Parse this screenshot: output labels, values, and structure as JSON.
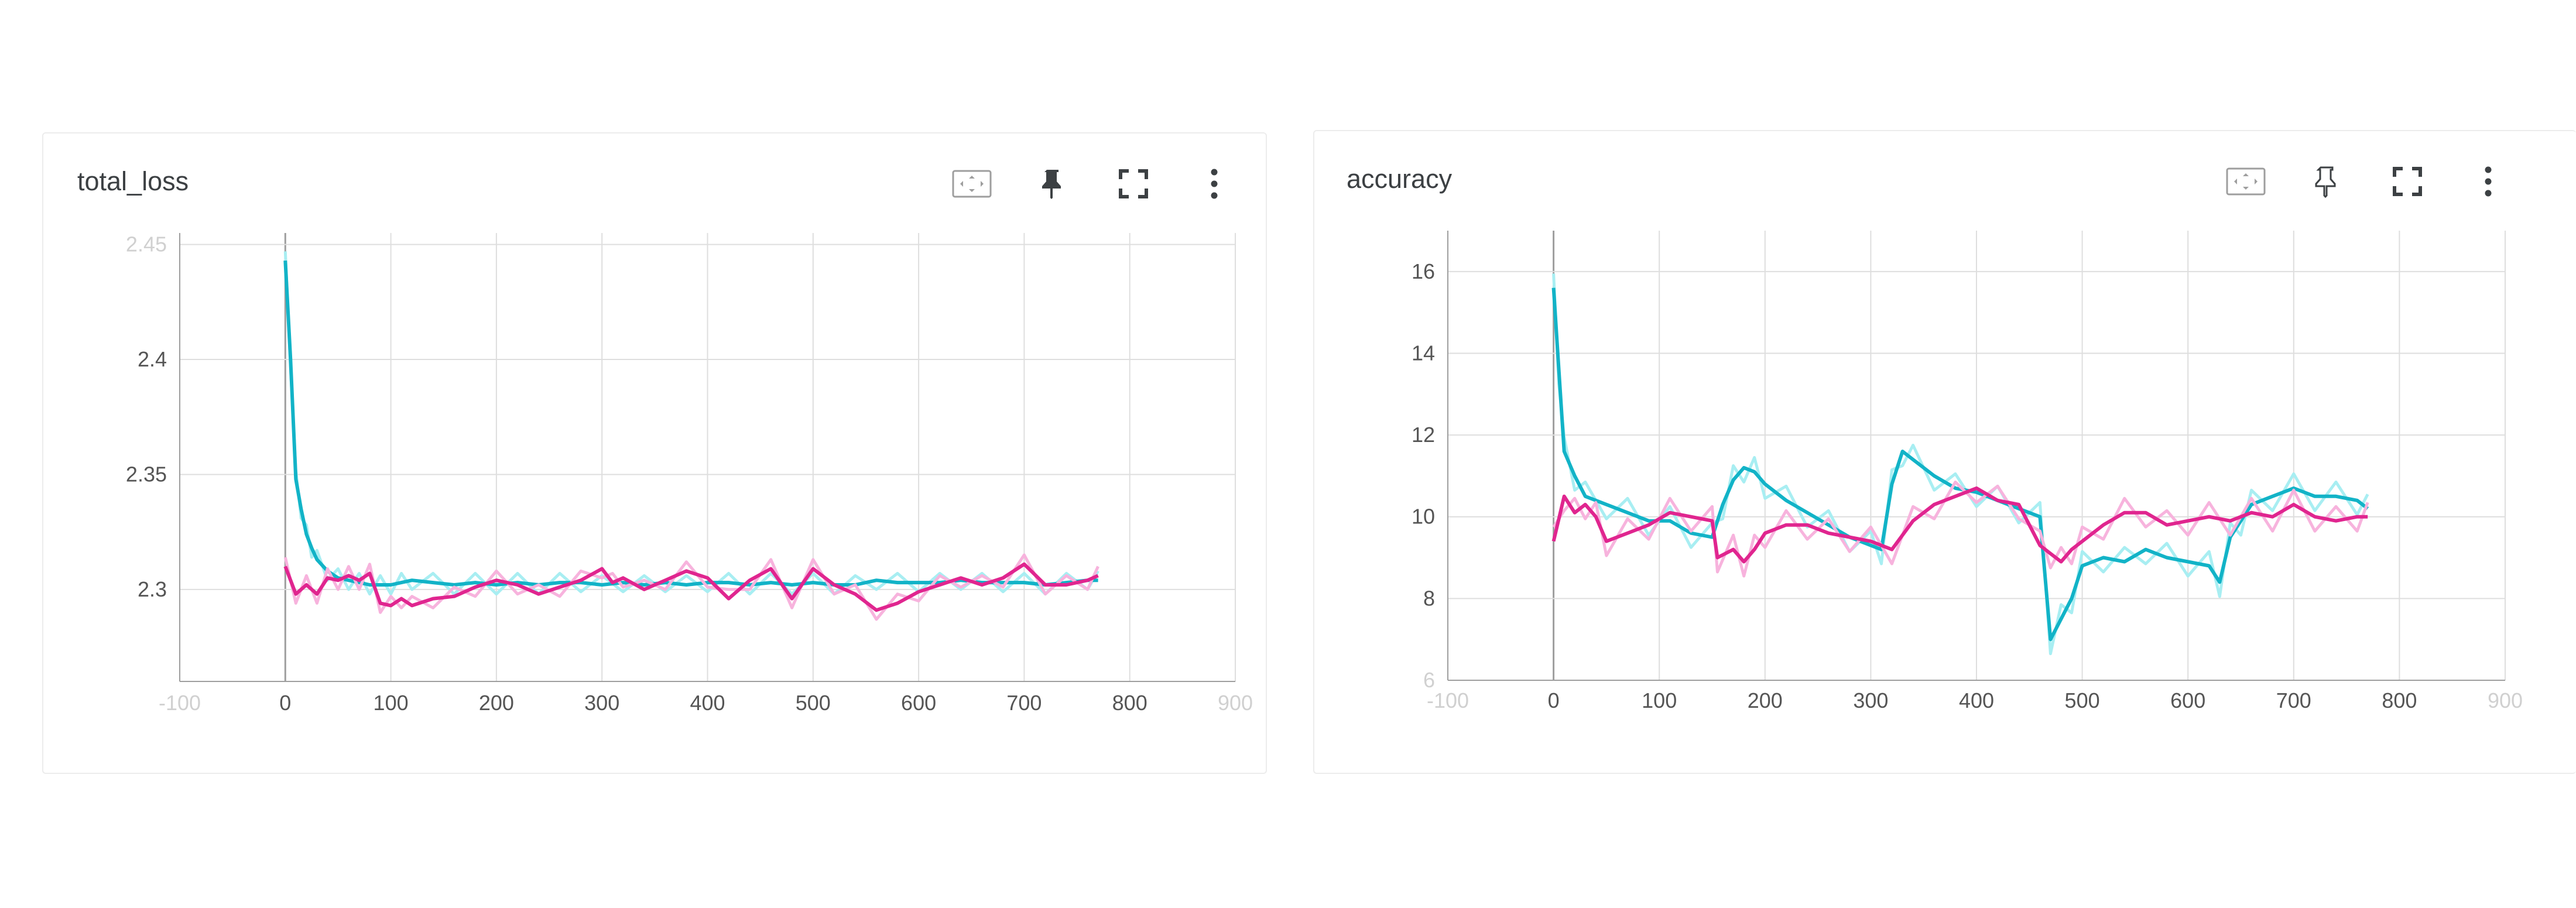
{
  "cards": [
    {
      "title": "total_loss",
      "toolbar": {
        "fit": "fit-domain-icon",
        "pin": "pin-icon",
        "fullscreen": "fullscreen-icon",
        "more": "more-vert-icon"
      }
    },
    {
      "title": "accuracy",
      "toolbar": {
        "fit": "fit-domain-icon",
        "pin": "pin-outline-icon",
        "fullscreen": "fullscreen-icon",
        "more": "more-vert-icon"
      }
    }
  ],
  "colors": {
    "teal": "#12b3c7",
    "teal_raw": "#a8eef2",
    "magenta": "#e0258f",
    "magenta_raw": "#f7b3dd",
    "grid": "#dedede",
    "axis": "#9e9e9e"
  },
  "chart_data": [
    {
      "type": "line",
      "title": "total_loss",
      "xlabel": "",
      "ylabel": "",
      "xlim": [
        -100,
        900
      ],
      "ylim": [
        2.26,
        2.455
      ],
      "x_ticks": [
        -100,
        0,
        100,
        200,
        300,
        400,
        500,
        600,
        700,
        800,
        900
      ],
      "x_tick_labels": [
        "-100",
        "0",
        "100",
        "200",
        "300",
        "400",
        "500",
        "600",
        "700",
        "800",
        "900"
      ],
      "x_faint_ticks": [
        -100,
        900
      ],
      "y_ticks": [
        2.3,
        2.35,
        2.4,
        2.45
      ],
      "y_tick_labels": [
        "2.3",
        "2.35",
        "2.4",
        "2.45"
      ],
      "y_faint_ticks": [
        2.45
      ],
      "grid": true,
      "series": [
        {
          "color": "#12b3c7",
          "raw_color": "#a8eef2",
          "x": [
            0,
            5,
            10,
            15,
            20,
            25,
            30,
            40,
            50,
            60,
            70,
            80,
            90,
            100,
            110,
            120,
            140,
            160,
            180,
            200,
            220,
            240,
            260,
            280,
            300,
            320,
            340,
            360,
            380,
            400,
            420,
            440,
            460,
            480,
            500,
            520,
            540,
            560,
            580,
            600,
            620,
            640,
            660,
            680,
            700,
            720,
            740,
            760,
            770
          ],
          "y": [
            2.443,
            2.4,
            2.348,
            2.335,
            2.324,
            2.318,
            2.313,
            2.308,
            2.305,
            2.304,
            2.303,
            2.302,
            2.302,
            2.302,
            2.303,
            2.304,
            2.303,
            2.302,
            2.303,
            2.302,
            2.303,
            2.302,
            2.303,
            2.303,
            2.302,
            2.303,
            2.302,
            2.303,
            2.302,
            2.303,
            2.303,
            2.302,
            2.303,
            2.302,
            2.303,
            2.302,
            2.302,
            2.304,
            2.303,
            2.303,
            2.303,
            2.304,
            2.303,
            2.303,
            2.303,
            2.302,
            2.303,
            2.304,
            2.304
          ]
        },
        {
          "color": "#e0258f",
          "raw_color": "#f7b3dd",
          "x": [
            0,
            10,
            20,
            30,
            40,
            50,
            60,
            70,
            80,
            90,
            100,
            110,
            120,
            140,
            160,
            180,
            200,
            220,
            240,
            260,
            280,
            300,
            310,
            320,
            340,
            360,
            380,
            400,
            420,
            440,
            460,
            480,
            500,
            520,
            540,
            560,
            580,
            600,
            620,
            640,
            660,
            680,
            700,
            720,
            740,
            760,
            770
          ],
          "y": [
            2.31,
            2.298,
            2.302,
            2.298,
            2.305,
            2.304,
            2.306,
            2.304,
            2.307,
            2.294,
            2.293,
            2.296,
            2.293,
            2.296,
            2.297,
            2.301,
            2.304,
            2.302,
            2.298,
            2.301,
            2.304,
            2.309,
            2.303,
            2.305,
            2.3,
            2.304,
            2.308,
            2.305,
            2.296,
            2.304,
            2.309,
            2.296,
            2.309,
            2.302,
            2.298,
            2.291,
            2.294,
            2.299,
            2.302,
            2.305,
            2.302,
            2.305,
            2.311,
            2.302,
            2.302,
            2.304,
            2.306
          ]
        }
      ]
    },
    {
      "type": "line",
      "title": "accuracy",
      "xlabel": "",
      "ylabel": "",
      "xlim": [
        -100,
        900
      ],
      "ylim": [
        6,
        17
      ],
      "x_ticks": [
        -100,
        0,
        100,
        200,
        300,
        400,
        500,
        600,
        700,
        800,
        900
      ],
      "x_tick_labels": [
        "-100",
        "0",
        "100",
        "200",
        "300",
        "400",
        "500",
        "600",
        "700",
        "800",
        "900"
      ],
      "x_faint_ticks": [
        -100,
        900
      ],
      "y_ticks": [
        6,
        8,
        10,
        12,
        14,
        16
      ],
      "y_tick_labels": [
        "6",
        "8",
        "10",
        "12",
        "14",
        "16"
      ],
      "y_faint_ticks": [
        6
      ],
      "grid": true,
      "series": [
        {
          "color": "#12b3c7",
          "raw_color": "#a8eef2",
          "x": [
            0,
            5,
            10,
            20,
            30,
            50,
            70,
            90,
            110,
            130,
            150,
            160,
            170,
            180,
            190,
            200,
            220,
            240,
            260,
            280,
            300,
            310,
            320,
            330,
            340,
            360,
            380,
            400,
            420,
            440,
            460,
            470,
            480,
            490,
            500,
            520,
            540,
            560,
            580,
            600,
            620,
            630,
            640,
            650,
            660,
            680,
            700,
            720,
            740,
            760,
            770
          ],
          "y": [
            15.6,
            13.6,
            11.6,
            11.0,
            10.5,
            10.3,
            10.1,
            9.9,
            9.9,
            9.6,
            9.5,
            10.3,
            10.9,
            11.2,
            11.1,
            10.8,
            10.4,
            10.1,
            9.8,
            9.5,
            9.3,
            9.2,
            10.8,
            11.6,
            11.4,
            11.0,
            10.7,
            10.6,
            10.4,
            10.2,
            10.0,
            7.0,
            7.5,
            8.0,
            8.8,
            9.0,
            8.9,
            9.2,
            9.0,
            8.9,
            8.8,
            8.4,
            9.5,
            9.9,
            10.3,
            10.5,
            10.7,
            10.5,
            10.5,
            10.4,
            10.2
          ]
        },
        {
          "color": "#e0258f",
          "raw_color": "#f7b3dd",
          "x": [
            0,
            10,
            20,
            30,
            40,
            50,
            70,
            90,
            110,
            130,
            150,
            155,
            170,
            180,
            190,
            200,
            220,
            240,
            260,
            280,
            300,
            320,
            340,
            360,
            380,
            400,
            420,
            440,
            460,
            470,
            480,
            490,
            500,
            520,
            540,
            560,
            580,
            600,
            620,
            640,
            660,
            680,
            700,
            720,
            740,
            760,
            770
          ],
          "y": [
            9.4,
            10.5,
            10.1,
            10.3,
            10.0,
            9.4,
            9.6,
            9.8,
            10.1,
            10.0,
            9.9,
            9.0,
            9.2,
            8.9,
            9.2,
            9.6,
            9.8,
            9.8,
            9.6,
            9.5,
            9.4,
            9.2,
            9.9,
            10.3,
            10.5,
            10.7,
            10.4,
            10.3,
            9.3,
            9.1,
            8.9,
            9.2,
            9.4,
            9.8,
            10.1,
            10.1,
            9.8,
            9.9,
            10.0,
            9.9,
            10.1,
            10.0,
            10.3,
            10.0,
            9.9,
            10.0,
            10.0
          ]
        }
      ]
    }
  ]
}
